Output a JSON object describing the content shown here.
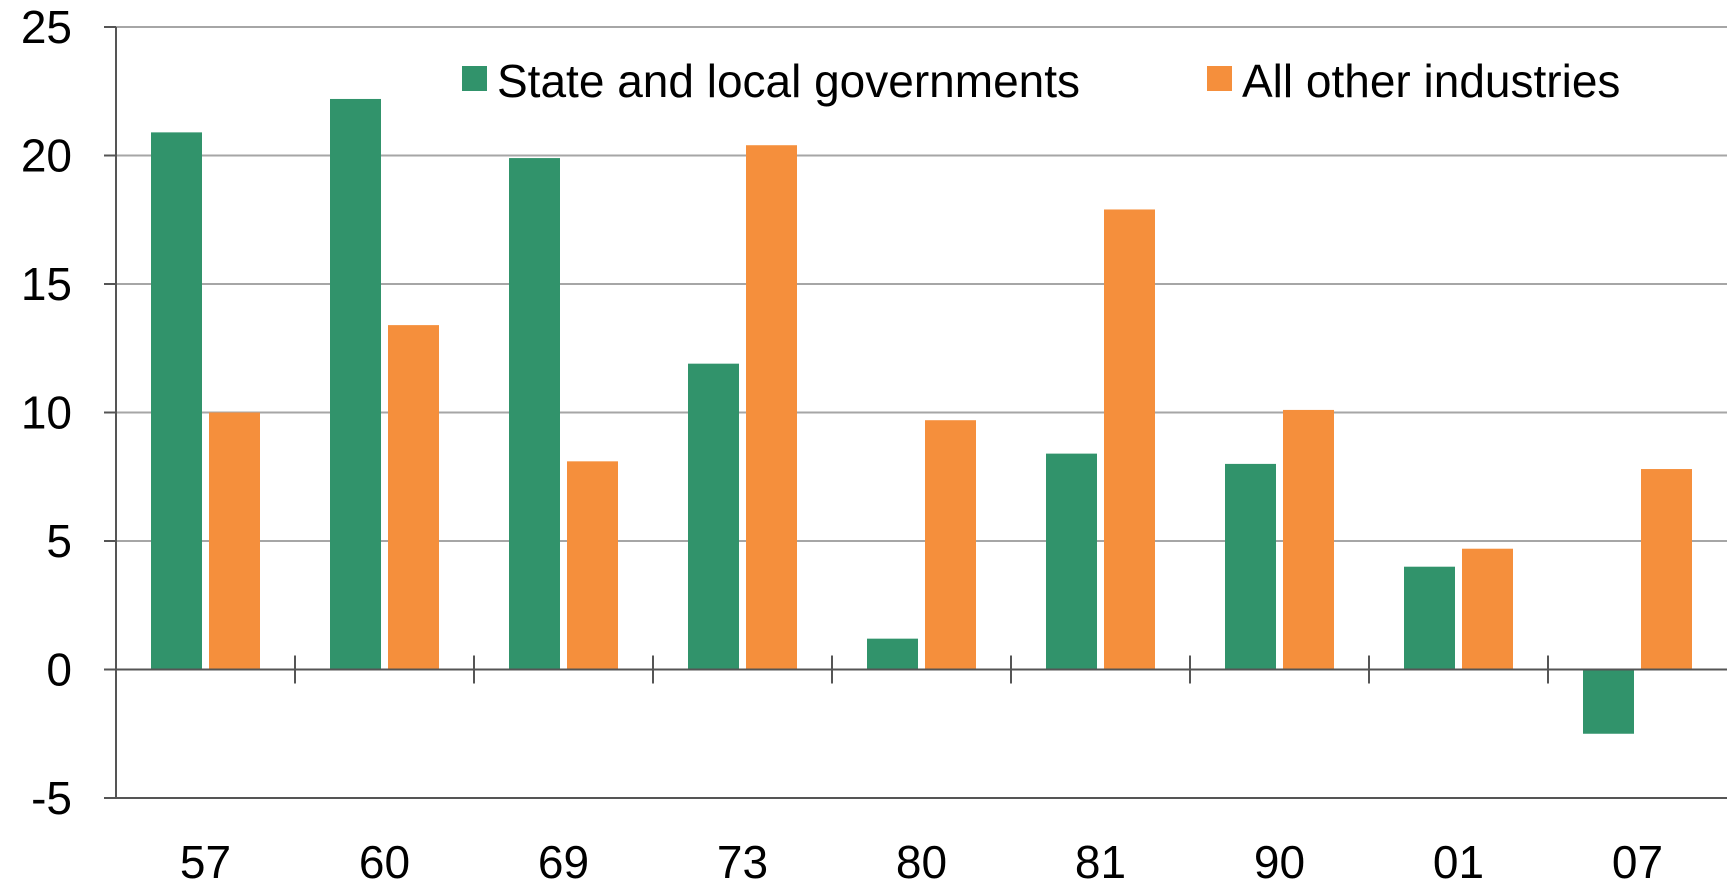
{
  "chart_data": {
    "type": "bar",
    "categories": [
      "57",
      "60",
      "69",
      "73",
      "80",
      "81",
      "90",
      "01",
      "07"
    ],
    "series": [
      {
        "name": "State and local governments",
        "color": "#31936b",
        "values": [
          20.9,
          22.2,
          19.9,
          11.9,
          1.2,
          8.4,
          8.0,
          4.0,
          -2.5
        ]
      },
      {
        "name": "All other industries",
        "color": "#f58f3c",
        "values": [
          10.0,
          13.4,
          8.1,
          20.4,
          9.7,
          17.9,
          10.1,
          4.7,
          7.8
        ]
      }
    ],
    "ylim": [
      -5,
      25
    ],
    "yticks": [
      -5,
      0,
      5,
      10,
      15,
      20,
      25
    ],
    "grid": true,
    "legend_position": "top-right",
    "title": "",
    "xlabel": "",
    "ylabel": ""
  }
}
